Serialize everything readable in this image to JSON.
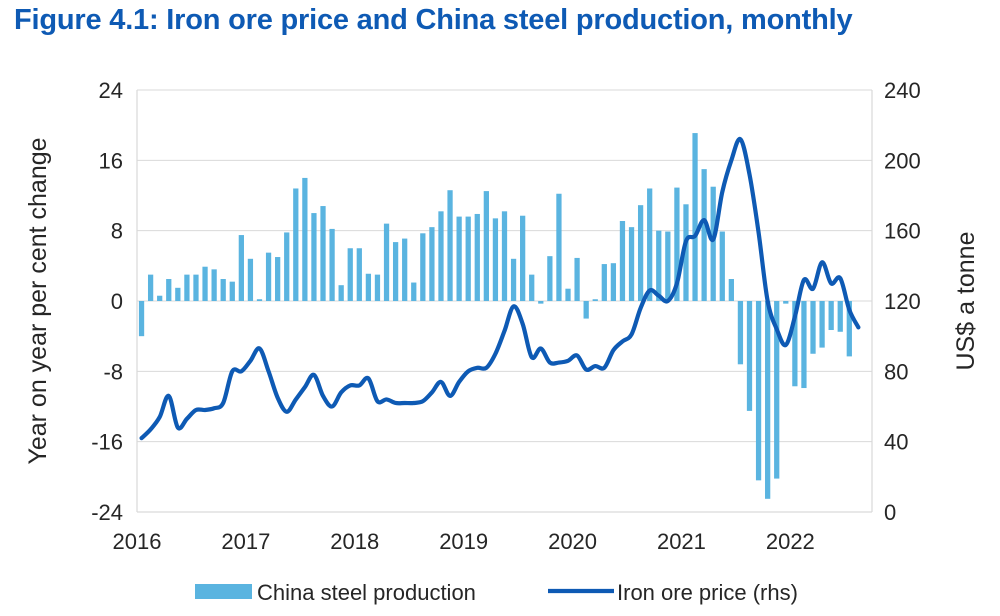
{
  "title": "Figure 4.1: Iron ore price and China steel production, monthly",
  "chart_data": {
    "type": "bar+line",
    "title": "Figure 4.1: Iron ore price and China steel production, monthly",
    "ylabel_left": "Year on year per cent change",
    "ylabel_right": "US$ a tonne",
    "xlabel": "",
    "ylim_left": [
      -24,
      24
    ],
    "ylim_right": [
      0,
      240
    ],
    "yticks_left": [
      24,
      16,
      8,
      0,
      -8,
      -16,
      -24
    ],
    "yticks_left_labels": [
      "24",
      "16",
      "8",
      "0",
      "-8",
      "-16",
      "-24"
    ],
    "yticks_right": [
      240,
      200,
      160,
      120,
      80,
      40,
      0
    ],
    "yticks_right_labels": [
      "240",
      "200",
      "160",
      "120",
      "80",
      "40",
      "0"
    ],
    "xlim": [
      2016,
      2022.75
    ],
    "xticks": [
      2016,
      2017,
      2018,
      2019,
      2020,
      2021,
      2022
    ],
    "xtick_labels": [
      "2016",
      "2017",
      "2018",
      "2019",
      "2020",
      "2021",
      "2022"
    ],
    "grid": "horizontal",
    "legend_position": "bottom",
    "colors": {
      "bars": "#5ab4e0",
      "line": "#0e5ab4",
      "grid": "#d9d9d9",
      "title": "#0e5ab4"
    },
    "series": [
      {
        "name": "China steel production",
        "kind": "bar",
        "axis": "left",
        "x_start": "2016-01",
        "frequency": "monthly",
        "values": [
          -4,
          3,
          0.6,
          2.5,
          1.5,
          3,
          3,
          3.9,
          3.6,
          2.5,
          2.2,
          7.5,
          4.8,
          0.2,
          5.5,
          5,
          7.8,
          12.8,
          14,
          10,
          10.8,
          8.2,
          1.8,
          6,
          6,
          3.1,
          3,
          8.8,
          6.7,
          7.1,
          2.1,
          7.7,
          8.4,
          10.2,
          12.6,
          9.6,
          9.6,
          9.9,
          12.5,
          9.4,
          10.2,
          4.8,
          9.7,
          3,
          -0.3,
          5.1,
          12.2,
          1.4,
          4.9,
          -2,
          0.2,
          4.2,
          4.3,
          9.1,
          8.4,
          10.9,
          12.8,
          8,
          7.9,
          12.9,
          11,
          19.1,
          15,
          13,
          7.9,
          2.5,
          -7.2,
          -12.5,
          -20.4,
          -22.5,
          -20.2,
          -0.3,
          -9.7,
          -9.9,
          -6,
          -5.3,
          -3.3,
          -3.5,
          -6.3
        ]
      },
      {
        "name": "Iron ore price (rhs)",
        "kind": "line",
        "axis": "right",
        "x_start": "2016-01",
        "frequency": "monthly",
        "values": [
          42,
          47,
          54,
          66,
          48,
          53,
          58,
          58,
          59,
          62,
          80,
          80,
          86,
          93,
          80,
          65,
          57,
          64,
          71,
          78,
          66,
          60,
          68,
          72,
          72,
          76,
          63,
          64,
          62,
          62,
          62,
          63,
          68,
          74,
          66,
          74,
          80,
          82,
          82,
          90,
          103,
          117,
          107,
          88,
          93,
          85,
          85,
          86,
          89,
          81,
          83,
          82,
          92,
          97,
          101,
          116,
          126,
          123,
          120,
          130,
          154,
          157,
          166,
          155,
          182,
          200,
          212,
          192,
          159,
          120,
          104,
          95,
          111,
          132,
          127,
          142,
          130,
          133,
          115,
          105
        ]
      }
    ]
  },
  "legend": [
    {
      "label": "China steel production"
    },
    {
      "label": "Iron ore price (rhs)"
    }
  ]
}
